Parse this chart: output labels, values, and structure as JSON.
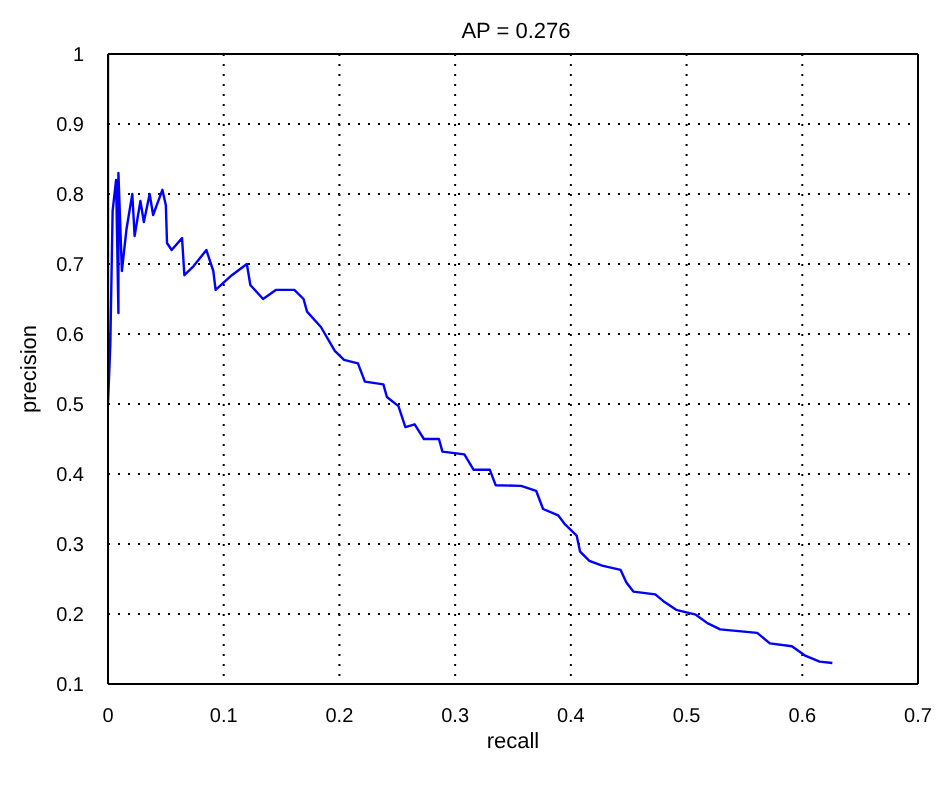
{
  "chart_data": {
    "type": "line",
    "title": "AP = 0.276",
    "xlabel": "recall",
    "ylabel": "precision",
    "xlim": [
      0,
      0.7
    ],
    "ylim": [
      0.1,
      1
    ],
    "xticks": [
      0,
      0.1,
      0.2,
      0.3,
      0.4,
      0.5,
      0.6,
      0.7
    ],
    "yticks": [
      0.1,
      0.2,
      0.3,
      0.4,
      0.5,
      0.6,
      0.7,
      0.8,
      0.9,
      1
    ],
    "grid": true,
    "marker": "none",
    "line_style": "solid",
    "series": [
      {
        "color": "#0000ff",
        "x": [
          0,
          0,
          0.002,
          0.004,
          0.007,
          0.009,
          0.009,
          0.012,
          0.016,
          0.021,
          0.023,
          0.028,
          0.031,
          0.036,
          0.039,
          0.047,
          0.05,
          0.051,
          0.055,
          0.064,
          0.066,
          0.074,
          0.085,
          0.091,
          0.093,
          0.107,
          0.12,
          0.123,
          0.134,
          0.145,
          0.161,
          0.169,
          0.172,
          0.184,
          0.196,
          0.204,
          0.216,
          0.222,
          0.238,
          0.241,
          0.251,
          0.257,
          0.265,
          0.273,
          0.286,
          0.289,
          0.308,
          0.316,
          0.33,
          0.335,
          0.357,
          0.37,
          0.376,
          0.389,
          0.395,
          0.405,
          0.408,
          0.416,
          0.427,
          0.443,
          0.448,
          0.454,
          0.473,
          0.481,
          0.491,
          0.508,
          0.518,
          0.529,
          0.561,
          0.572,
          0.591,
          0.602,
          0.615,
          0.626
        ],
        "values": [
          1,
          0.5,
          0.584,
          0.776,
          0.82,
          0.63,
          0.83,
          0.69,
          0.75,
          0.8,
          0.74,
          0.79,
          0.76,
          0.8,
          0.77,
          0.806,
          0.784,
          0.73,
          0.72,
          0.737,
          0.684,
          0.697,
          0.72,
          0.69,
          0.663,
          0.684,
          0.7,
          0.67,
          0.65,
          0.663,
          0.663,
          0.65,
          0.632,
          0.61,
          0.576,
          0.563,
          0.558,
          0.532,
          0.528,
          0.51,
          0.497,
          0.467,
          0.471,
          0.45,
          0.45,
          0.432,
          0.428,
          0.406,
          0.406,
          0.384,
          0.383,
          0.376,
          0.35,
          0.341,
          0.328,
          0.312,
          0.289,
          0.276,
          0.269,
          0.263,
          0.245,
          0.232,
          0.228,
          0.217,
          0.206,
          0.199,
          0.187,
          0.178,
          0.173,
          0.158,
          0.154,
          0.141,
          0.132,
          0.13
        ]
      }
    ]
  }
}
